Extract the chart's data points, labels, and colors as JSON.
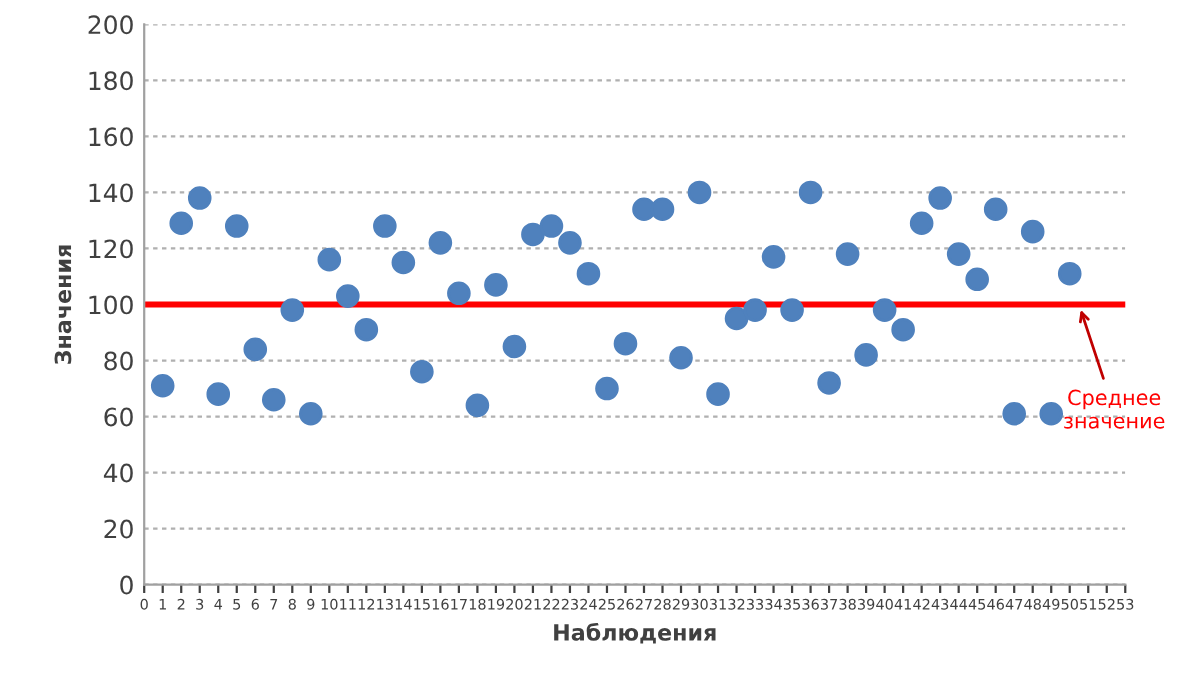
{
  "chart_data": {
    "type": "scatter",
    "xlabel": "Наблюдения",
    "ylabel": "Значения",
    "x": [
      1,
      2,
      3,
      4,
      5,
      6,
      7,
      8,
      9,
      10,
      11,
      12,
      13,
      14,
      15,
      16,
      17,
      18,
      19,
      20,
      21,
      22,
      23,
      24,
      25,
      26,
      27,
      28,
      29,
      30,
      31,
      32,
      33,
      34,
      35,
      36,
      37,
      38,
      39,
      40,
      41,
      42,
      43,
      44,
      45,
      46,
      47,
      48,
      49,
      50
    ],
    "series": [
      {
        "color": "#4f81bd",
        "values": [
          71,
          129,
          138,
          68,
          128,
          84,
          66,
          98,
          61,
          116,
          103,
          91,
          128,
          115,
          76,
          122,
          104,
          64,
          107,
          85,
          125,
          128,
          122,
          111,
          70,
          86,
          134,
          134,
          81,
          140,
          68,
          95,
          98,
          117,
          98,
          140,
          72,
          118,
          82,
          98,
          91,
          129,
          138,
          118,
          109,
          134,
          61,
          126,
          61,
          111
        ]
      }
    ],
    "xlim": [
      0,
      53
    ],
    "xticks": [
      0,
      1,
      2,
      3,
      4,
      5,
      6,
      7,
      8,
      9,
      10,
      11,
      12,
      13,
      14,
      15,
      16,
      17,
      18,
      19,
      20,
      21,
      22,
      23,
      24,
      25,
      26,
      27,
      28,
      29,
      30,
      31,
      32,
      33,
      34,
      35,
      36,
      37,
      38,
      39,
      40,
      41,
      42,
      43,
      44,
      45,
      46,
      47,
      48,
      49,
      50,
      51,
      52,
      53
    ],
    "ylim": [
      0,
      200
    ],
    "yticks": [
      0,
      20,
      40,
      60,
      80,
      100,
      120,
      140,
      160,
      180,
      200
    ],
    "grid": "y",
    "marker": "circle",
    "legend": false,
    "ref_lines": [
      {
        "axis": "y",
        "value": 100,
        "color": "#ff0000"
      }
    ],
    "annotations": [
      {
        "text": "Среднее\nзначение",
        "x": 50.5,
        "y": 100
      }
    ]
  }
}
